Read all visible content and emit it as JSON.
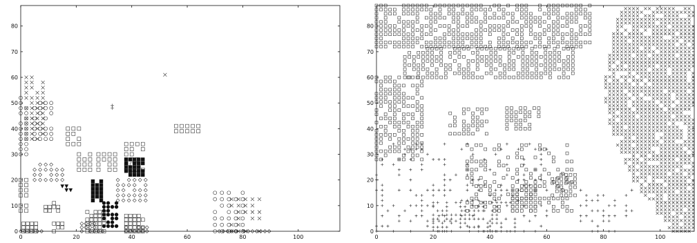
{
  "chart_data": [
    {
      "type": "scatter",
      "title": "",
      "xlabel": "",
      "ylabel": "",
      "xlim": [
        0,
        115
      ],
      "ylim": [
        0,
        88
      ],
      "xticks": [
        "0",
        "20",
        "40",
        "60",
        "80",
        "100"
      ],
      "yticks": [
        "0",
        "10",
        "20",
        "30",
        "40",
        "50",
        "60",
        "70",
        "80"
      ],
      "grid": false,
      "legend": "none",
      "marker_types": [
        "square",
        "circle",
        "diamond",
        "cross-x",
        "plus",
        "filled-square",
        "filled-circle",
        "filled-triangle"
      ],
      "regions": [
        {
          "marker": "circle",
          "x": [
            0,
            2
          ],
          "y": [
            30,
            52
          ],
          "step": 2
        },
        {
          "marker": "square",
          "x": [
            0,
            2
          ],
          "y": [
            8,
            20
          ],
          "step": 2
        },
        {
          "marker": "cross-x",
          "x": [
            2,
            8
          ],
          "y": [
            36,
            60
          ],
          "step": 2
        },
        {
          "marker": "circle",
          "x": [
            5,
            12
          ],
          "y": [
            36,
            50
          ],
          "step": 2
        },
        {
          "marker": "square",
          "x": [
            1,
            6
          ],
          "y": [
            0,
            4
          ],
          "step": 1.5
        },
        {
          "marker": "diamond",
          "x": [
            0,
            8
          ],
          "y": [
            0,
            1
          ],
          "step": 1.5
        },
        {
          "marker": "diamond",
          "x": [
            5,
            15
          ],
          "y": [
            20,
            26
          ],
          "step": 2
        },
        {
          "marker": "square",
          "x": [
            9,
            14
          ],
          "y": [
            8,
            12
          ],
          "step": 1.5
        },
        {
          "marker": "square",
          "x": [
            12,
            16
          ],
          "y": [
            0,
            4
          ],
          "step": 1.5
        },
        {
          "marker": "square",
          "x": [
            17,
            22
          ],
          "y": [
            34,
            40
          ],
          "step": 2
        },
        {
          "marker": "square",
          "x": [
            21,
            25
          ],
          "y": [
            24,
            30
          ],
          "step": 2
        },
        {
          "marker": "square",
          "x": [
            24,
            30
          ],
          "y": [
            0,
            8
          ],
          "step": 1.5
        },
        {
          "marker": "diamond",
          "x": [
            22,
            30
          ],
          "y": [
            0,
            3
          ],
          "step": 1.5
        },
        {
          "marker": "filled-square",
          "x": [
            26,
            30
          ],
          "y": [
            12,
            20
          ],
          "step": 1.5
        },
        {
          "marker": "filled-circle",
          "x": [
            30,
            35
          ],
          "y": [
            2,
            12
          ],
          "step": 1.5
        },
        {
          "marker": "square",
          "x": [
            28,
            34
          ],
          "y": [
            24,
            30
          ],
          "step": 2
        },
        {
          "marker": "square",
          "x": [
            38,
            44
          ],
          "y": [
            24,
            34
          ],
          "step": 2
        },
        {
          "marker": "filled-square",
          "x": [
            38,
            45
          ],
          "y": [
            22,
            28
          ],
          "step": 1.5
        },
        {
          "marker": "diamond",
          "x": [
            35,
            45
          ],
          "y": [
            12,
            20
          ],
          "step": 2
        },
        {
          "marker": "square",
          "x": [
            38,
            44
          ],
          "y": [
            0,
            6
          ],
          "step": 1.5
        },
        {
          "marker": "diamond",
          "x": [
            38,
            46
          ],
          "y": [
            0,
            2
          ],
          "step": 1.5
        },
        {
          "marker": "square",
          "x": [
            56,
            64
          ],
          "y": [
            39,
            42
          ],
          "step": 2
        },
        {
          "marker": "cross-x",
          "x": [
            52,
            52
          ],
          "y": [
            60,
            61
          ],
          "step": 1
        },
        {
          "marker": "plus",
          "x": [
            33,
            33
          ],
          "y": [
            48,
            49
          ],
          "step": 1
        },
        {
          "marker": "filled-triangle",
          "x": [
            15,
            18
          ],
          "y": [
            16,
            18
          ],
          "step": 1.5
        },
        {
          "marker": "circle",
          "x": [
            70,
            82
          ],
          "y": [
            0,
            16
          ],
          "step": 2.5
        },
        {
          "marker": "cross-x",
          "x": [
            76,
            86
          ],
          "y": [
            0,
            14
          ],
          "step": 2.5
        },
        {
          "marker": "diamond",
          "x": [
            70,
            90
          ],
          "y": [
            0,
            1
          ],
          "step": 1.5
        }
      ]
    },
    {
      "type": "scatter",
      "title": "",
      "xlabel": "",
      "ylabel": "",
      "xlim": [
        0,
        112
      ],
      "ylim": [
        0,
        88
      ],
      "xticks": [
        "0",
        "20",
        "40",
        "60",
        "80",
        "100"
      ],
      "yticks": [
        "0",
        "10",
        "20",
        "30",
        "40",
        "50",
        "60",
        "70",
        "80"
      ],
      "grid": false,
      "legend": "none",
      "marker_types": [
        "square",
        "cross-x",
        "plus"
      ],
      "regions": [
        {
          "marker": "square",
          "x": [
            0,
            76
          ],
          "y": [
            72,
            88
          ],
          "step": 1.6,
          "density": 0.75
        },
        {
          "marker": "square",
          "x": [
            10,
            70
          ],
          "y": [
            60,
            72
          ],
          "step": 1.6,
          "density": 0.65
        },
        {
          "marker": "square",
          "x": [
            0,
            16
          ],
          "y": [
            28,
            60
          ],
          "step": 1.6,
          "density": 0.7
        },
        {
          "marker": "square",
          "x": [
            26,
            40
          ],
          "y": [
            38,
            48
          ],
          "step": 1.6,
          "density": 0.6
        },
        {
          "marker": "square",
          "x": [
            46,
            58
          ],
          "y": [
            40,
            48
          ],
          "step": 1.6,
          "density": 0.7
        },
        {
          "marker": "square",
          "x": [
            32,
            70
          ],
          "y": [
            8,
            35
          ],
          "step": 1.6,
          "density": 0.35
        },
        {
          "marker": "square",
          "x": [
            48,
            56
          ],
          "y": [
            8,
            18
          ],
          "step": 1.6,
          "density": 0.8
        },
        {
          "marker": "square",
          "x": [
            62,
            70
          ],
          "y": [
            14,
            22
          ],
          "step": 1.6,
          "density": 0.8
        },
        {
          "marker": "plus",
          "x": [
            0,
            60
          ],
          "y": [
            0,
            34
          ],
          "step": 2.0,
          "density": 0.3
        },
        {
          "marker": "plus",
          "x": [
            20,
            50
          ],
          "y": [
            0,
            12
          ],
          "step": 1.6,
          "density": 0.55
        },
        {
          "marker": "plus",
          "x": [
            72,
            90
          ],
          "y": [
            0,
            16
          ],
          "step": 2.0,
          "density": 0.4
        },
        {
          "marker": "cross-x",
          "x": [
            78,
            112
          ],
          "y": [
            0,
            88
          ],
          "step": 1.4,
          "density": 0.85,
          "boundary": [
            [
              86,
              88
            ],
            [
              82,
              70
            ],
            [
              80,
              55
            ],
            [
              82,
              42
            ],
            [
              86,
              30
            ],
            [
              90,
              20
            ],
            [
              98,
              8
            ],
            [
              104,
              0
            ]
          ]
        }
      ]
    }
  ]
}
